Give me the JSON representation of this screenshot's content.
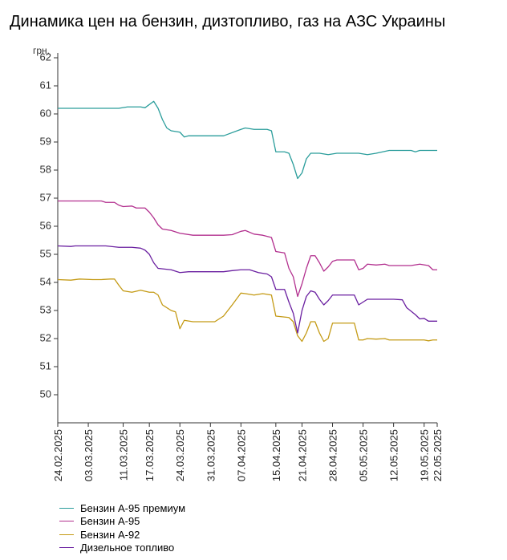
{
  "page": {
    "title": "Динамика цен на бензин, дизтопливо, газ на АЗС Украины"
  },
  "chart_data": {
    "type": "line",
    "ylabel": "грн.",
    "ylim": [
      49,
      62
    ],
    "yticks": [
      50,
      51,
      52,
      53,
      54,
      55,
      56,
      57,
      58,
      59,
      60,
      61,
      62
    ],
    "xlim": [
      "2025-02-24",
      "2025-05-22"
    ],
    "xtick_labels": [
      "24.02.2025",
      "03.03.2025",
      "11.03.2025",
      "17.03.2025",
      "24.03.2025",
      "31.03.2025",
      "07.04.2025",
      "15.04.2025",
      "21.04.2025",
      "28.04.2025",
      "05.05.2025",
      "12.05.2025",
      "19.05.2025",
      "22.05.2025"
    ],
    "xtick_dates": [
      "2025-02-24",
      "2025-03-03",
      "2025-03-11",
      "2025-03-17",
      "2025-03-24",
      "2025-03-31",
      "2025-04-07",
      "2025-04-15",
      "2025-04-21",
      "2025-04-28",
      "2025-05-05",
      "2025-05-12",
      "2025-05-19",
      "2025-05-22"
    ],
    "grid": false,
    "legend_position": "bottom",
    "series": [
      {
        "name": "Бензин А-95 премиум",
        "color": "#2a9d9b",
        "points": [
          [
            "2025-02-24",
            60.2
          ],
          [
            "2025-03-04",
            60.2
          ],
          [
            "2025-03-10",
            60.2
          ],
          [
            "2025-03-12",
            60.25
          ],
          [
            "2025-03-15",
            60.25
          ],
          [
            "2025-03-16",
            60.22
          ],
          [
            "2025-03-18",
            60.45
          ],
          [
            "2025-03-19",
            60.2
          ],
          [
            "2025-03-20",
            59.8
          ],
          [
            "2025-03-21",
            59.5
          ],
          [
            "2025-03-22",
            59.4
          ],
          [
            "2025-03-24",
            59.35
          ],
          [
            "2025-03-25",
            59.18
          ],
          [
            "2025-03-26",
            59.22
          ],
          [
            "2025-04-03",
            59.22
          ],
          [
            "2025-04-07",
            59.45
          ],
          [
            "2025-04-08",
            59.5
          ],
          [
            "2025-04-10",
            59.45
          ],
          [
            "2025-04-13",
            59.45
          ],
          [
            "2025-04-14",
            59.4
          ],
          [
            "2025-04-15",
            58.65
          ],
          [
            "2025-04-17",
            58.65
          ],
          [
            "2025-04-18",
            58.6
          ],
          [
            "2025-04-19",
            58.2
          ],
          [
            "2025-04-20",
            57.7
          ],
          [
            "2025-04-21",
            57.9
          ],
          [
            "2025-04-22",
            58.4
          ],
          [
            "2025-04-23",
            58.6
          ],
          [
            "2025-04-25",
            58.6
          ],
          [
            "2025-04-27",
            58.55
          ],
          [
            "2025-04-29",
            58.6
          ],
          [
            "2025-05-04",
            58.6
          ],
          [
            "2025-05-06",
            58.55
          ],
          [
            "2025-05-08",
            58.6
          ],
          [
            "2025-05-11",
            58.7
          ],
          [
            "2025-05-16",
            58.7
          ],
          [
            "2025-05-17",
            58.65
          ],
          [
            "2025-05-18",
            58.7
          ],
          [
            "2025-05-22",
            58.7
          ]
        ]
      },
      {
        "name": "Бензин А-95",
        "color": "#b22f8e",
        "points": [
          [
            "2025-02-24",
            56.9
          ],
          [
            "2025-03-06",
            56.9
          ],
          [
            "2025-03-07",
            56.85
          ],
          [
            "2025-03-09",
            56.85
          ],
          [
            "2025-03-10",
            56.75
          ],
          [
            "2025-03-11",
            56.7
          ],
          [
            "2025-03-13",
            56.72
          ],
          [
            "2025-03-14",
            56.65
          ],
          [
            "2025-03-16",
            56.65
          ],
          [
            "2025-03-17",
            56.5
          ],
          [
            "2025-03-18",
            56.3
          ],
          [
            "2025-03-19",
            56.05
          ],
          [
            "2025-03-20",
            55.9
          ],
          [
            "2025-03-22",
            55.85
          ],
          [
            "2025-03-24",
            55.75
          ],
          [
            "2025-03-27",
            55.68
          ],
          [
            "2025-04-03",
            55.68
          ],
          [
            "2025-04-05",
            55.7
          ],
          [
            "2025-04-07",
            55.82
          ],
          [
            "2025-04-08",
            55.85
          ],
          [
            "2025-04-10",
            55.72
          ],
          [
            "2025-04-12",
            55.68
          ],
          [
            "2025-04-14",
            55.6
          ],
          [
            "2025-04-15",
            55.1
          ],
          [
            "2025-04-17",
            55.05
          ],
          [
            "2025-04-18",
            54.5
          ],
          [
            "2025-04-19",
            54.2
          ],
          [
            "2025-04-20",
            53.5
          ],
          [
            "2025-04-21",
            53.95
          ],
          [
            "2025-04-22",
            54.5
          ],
          [
            "2025-04-23",
            54.95
          ],
          [
            "2025-04-24",
            54.95
          ],
          [
            "2025-04-25",
            54.7
          ],
          [
            "2025-04-26",
            54.4
          ],
          [
            "2025-04-27",
            54.55
          ],
          [
            "2025-04-28",
            54.75
          ],
          [
            "2025-04-29",
            54.8
          ],
          [
            "2025-05-03",
            54.8
          ],
          [
            "2025-05-04",
            54.45
          ],
          [
            "2025-05-05",
            54.5
          ],
          [
            "2025-05-06",
            54.65
          ],
          [
            "2025-05-08",
            54.62
          ],
          [
            "2025-05-10",
            54.65
          ],
          [
            "2025-05-11",
            54.6
          ],
          [
            "2025-05-16",
            54.6
          ],
          [
            "2025-05-18",
            54.65
          ],
          [
            "2025-05-20",
            54.6
          ],
          [
            "2025-05-21",
            54.45
          ],
          [
            "2025-05-22",
            54.45
          ]
        ]
      },
      {
        "name": "Бензин А-92",
        "color": "#c49a14",
        "points": [
          [
            "2025-02-24",
            54.1
          ],
          [
            "2025-02-27",
            54.08
          ],
          [
            "2025-03-01",
            54.12
          ],
          [
            "2025-03-04",
            54.1
          ],
          [
            "2025-03-06",
            54.1
          ],
          [
            "2025-03-08",
            54.12
          ],
          [
            "2025-03-09",
            54.12
          ],
          [
            "2025-03-10",
            53.9
          ],
          [
            "2025-03-11",
            53.7
          ],
          [
            "2025-03-13",
            53.65
          ],
          [
            "2025-03-15",
            53.72
          ],
          [
            "2025-03-17",
            53.65
          ],
          [
            "2025-03-18",
            53.65
          ],
          [
            "2025-03-19",
            53.55
          ],
          [
            "2025-03-20",
            53.2
          ],
          [
            "2025-03-22",
            53.0
          ],
          [
            "2025-03-23",
            52.95
          ],
          [
            "2025-03-24",
            52.35
          ],
          [
            "2025-03-25",
            52.65
          ],
          [
            "2025-03-27",
            52.6
          ],
          [
            "2025-04-01",
            52.6
          ],
          [
            "2025-04-03",
            52.8
          ],
          [
            "2025-04-05",
            53.2
          ],
          [
            "2025-04-07",
            53.62
          ],
          [
            "2025-04-08",
            53.6
          ],
          [
            "2025-04-10",
            53.55
          ],
          [
            "2025-04-12",
            53.6
          ],
          [
            "2025-04-14",
            53.55
          ],
          [
            "2025-04-15",
            52.8
          ],
          [
            "2025-04-18",
            52.75
          ],
          [
            "2025-04-19",
            52.6
          ],
          [
            "2025-04-20",
            52.1
          ],
          [
            "2025-04-21",
            51.9
          ],
          [
            "2025-04-22",
            52.2
          ],
          [
            "2025-04-23",
            52.6
          ],
          [
            "2025-04-24",
            52.6
          ],
          [
            "2025-04-25",
            52.2
          ],
          [
            "2025-04-26",
            51.9
          ],
          [
            "2025-04-27",
            52.0
          ],
          [
            "2025-04-28",
            52.55
          ],
          [
            "2025-05-03",
            52.55
          ],
          [
            "2025-05-04",
            51.95
          ],
          [
            "2025-05-05",
            51.95
          ],
          [
            "2025-05-06",
            52.0
          ],
          [
            "2025-05-08",
            51.98
          ],
          [
            "2025-05-10",
            52.0
          ],
          [
            "2025-05-11",
            51.95
          ],
          [
            "2025-05-19",
            51.95
          ],
          [
            "2025-05-20",
            51.92
          ],
          [
            "2025-05-21",
            51.95
          ],
          [
            "2025-05-22",
            51.95
          ]
        ]
      },
      {
        "name": "Дизельное топливо",
        "color": "#6a1fa0",
        "points": [
          [
            "2025-02-24",
            55.3
          ],
          [
            "2025-02-27",
            55.28
          ],
          [
            "2025-02-28",
            55.3
          ],
          [
            "2025-03-07",
            55.3
          ],
          [
            "2025-03-10",
            55.25
          ],
          [
            "2025-03-13",
            55.25
          ],
          [
            "2025-03-15",
            55.22
          ],
          [
            "2025-03-16",
            55.15
          ],
          [
            "2025-03-17",
            55.0
          ],
          [
            "2025-03-18",
            54.7
          ],
          [
            "2025-03-19",
            54.5
          ],
          [
            "2025-03-22",
            54.45
          ],
          [
            "2025-03-24",
            54.35
          ],
          [
            "2025-03-26",
            54.38
          ],
          [
            "2025-04-03",
            54.38
          ],
          [
            "2025-04-05",
            54.42
          ],
          [
            "2025-04-07",
            54.45
          ],
          [
            "2025-04-09",
            54.45
          ],
          [
            "2025-04-11",
            54.35
          ],
          [
            "2025-04-13",
            54.3
          ],
          [
            "2025-04-14",
            54.2
          ],
          [
            "2025-04-15",
            53.75
          ],
          [
            "2025-04-17",
            53.75
          ],
          [
            "2025-04-18",
            53.3
          ],
          [
            "2025-04-19",
            52.9
          ],
          [
            "2025-04-20",
            52.2
          ],
          [
            "2025-04-21",
            53.0
          ],
          [
            "2025-04-22",
            53.5
          ],
          [
            "2025-04-23",
            53.7
          ],
          [
            "2025-04-24",
            53.65
          ],
          [
            "2025-04-25",
            53.4
          ],
          [
            "2025-04-26",
            53.2
          ],
          [
            "2025-04-27",
            53.35
          ],
          [
            "2025-04-28",
            53.55
          ],
          [
            "2025-05-03",
            53.55
          ],
          [
            "2025-05-04",
            53.2
          ],
          [
            "2025-05-05",
            53.3
          ],
          [
            "2025-05-06",
            53.4
          ],
          [
            "2025-05-12",
            53.4
          ],
          [
            "2025-05-14",
            53.38
          ],
          [
            "2025-05-15",
            53.1
          ],
          [
            "2025-05-17",
            52.85
          ],
          [
            "2025-05-18",
            52.7
          ],
          [
            "2025-05-19",
            52.72
          ],
          [
            "2025-05-20",
            52.62
          ],
          [
            "2025-05-22",
            52.62
          ]
        ]
      }
    ]
  }
}
